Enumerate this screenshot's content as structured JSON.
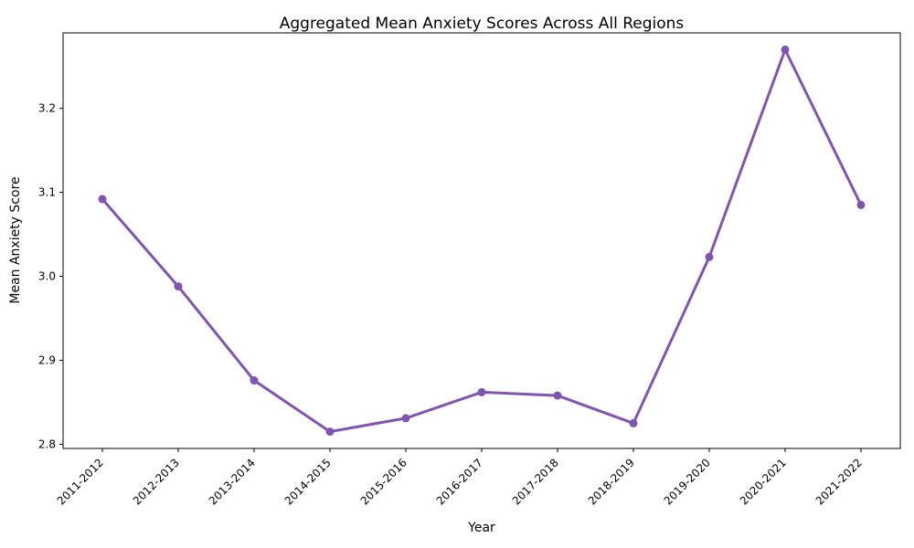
{
  "chart_data": {
    "type": "line",
    "title": "Aggregated Mean Anxiety Scores Across All Regions",
    "xlabel": "Year",
    "ylabel": "Mean Anxiety Score",
    "categories": [
      "2011-2012",
      "2012-2013",
      "2013-2014",
      "2014-2015",
      "2015-2016",
      "2016-2017",
      "2017-2018",
      "2018-2019",
      "2019-2020",
      "2020-2021",
      "2021-2022"
    ],
    "series": [
      {
        "values": [
          3.092,
          2.988,
          2.876,
          2.815,
          2.831,
          2.862,
          2.858,
          2.825,
          3.023,
          3.27,
          3.085
        ],
        "color": "#7f55b1"
      }
    ],
    "ylim": [
      2.795,
      3.29
    ],
    "yticks": [
      "2.8",
      "2.9",
      "3.0",
      "3.1",
      "3.2"
    ],
    "grid": false,
    "legend": "none"
  }
}
